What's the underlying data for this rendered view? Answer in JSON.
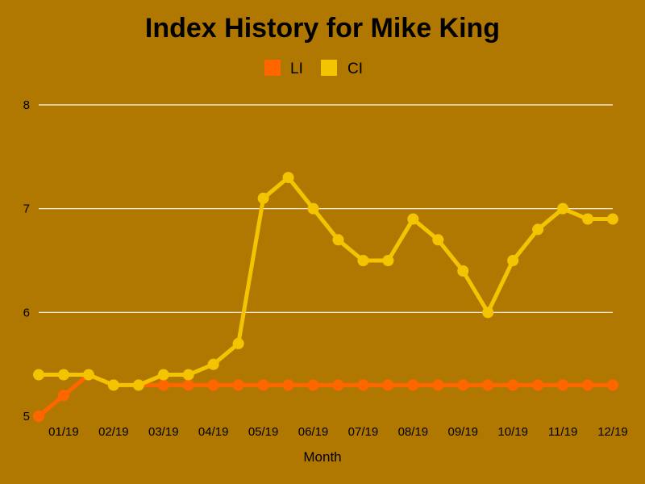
{
  "chart_data": {
    "type": "line",
    "title": "Index History for Mike King",
    "xlabel": "Month",
    "ylabel": "",
    "ylim": [
      5,
      8
    ],
    "yticks": [
      "5",
      "6",
      "7",
      "8"
    ],
    "x_tick_labels": [
      "01/19",
      "02/19",
      "03/19",
      "04/19",
      "05/19",
      "06/19",
      "07/19",
      "08/19",
      "09/19",
      "10/19",
      "11/19",
      "12/19"
    ],
    "point_count": 24,
    "grid": true,
    "legend_position": "top-center",
    "series": [
      {
        "name": "LI",
        "color": "#ff6600",
        "values": [
          5.0,
          5.2,
          5.4,
          5.3,
          5.3,
          5.3,
          5.3,
          5.3,
          5.3,
          5.3,
          5.3,
          5.3,
          5.3,
          5.3,
          5.3,
          5.3,
          5.3,
          5.3,
          5.3,
          5.3,
          5.3,
          5.3,
          5.3,
          5.3
        ]
      },
      {
        "name": "CI",
        "color": "#f5c400",
        "values": [
          5.4,
          5.4,
          5.4,
          5.3,
          5.3,
          5.4,
          5.4,
          5.5,
          5.7,
          7.1,
          7.3,
          7.0,
          6.7,
          6.5,
          6.5,
          6.9,
          6.7,
          6.4,
          6.0,
          6.5,
          6.8,
          7.0,
          6.9,
          6.9
        ]
      }
    ]
  }
}
